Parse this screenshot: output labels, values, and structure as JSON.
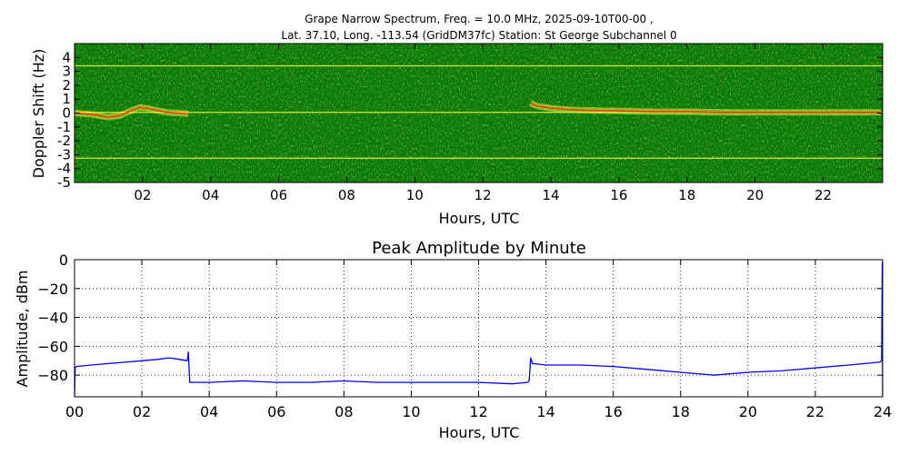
{
  "chart_data": [
    {
      "type": "heatmap",
      "title_line1": "Grape Narrow Spectrum, Freq. = 10.0 MHz, 2025-09-10T00-00 ,",
      "title_line2": "Lat.  37.10, Long. -113.54 (GridDM37fc) Station: St George Subchannel 0",
      "xlabel": "Hours, UTC",
      "ylabel": "Doppler Shift (Hz)",
      "xlim": [
        0,
        23.75
      ],
      "ylim": [
        -5,
        5
      ],
      "xticks": [
        2,
        4,
        6,
        8,
        10,
        12,
        14,
        16,
        18,
        20,
        22
      ],
      "xtick_labels": [
        "02",
        "04",
        "06",
        "08",
        "10",
        "12",
        "14",
        "16",
        "18",
        "20",
        "22"
      ],
      "yticks": [
        4,
        3,
        2,
        1,
        0,
        -1,
        -2,
        -3,
        -4,
        -5
      ],
      "ytick_labels": [
        "4",
        "3",
        "2",
        "1",
        "0",
        "-1",
        "-2",
        "-3",
        "-4",
        "-5"
      ],
      "colors": {
        "background": "#0a7a08",
        "signal": "#f4f03a",
        "peak": "#ff2a1a"
      },
      "spectral_lines_hz": [
        3.4,
        0.05,
        -3.25
      ],
      "doppler_trace": {
        "x": [
          0,
          0.5,
          1,
          1.3,
          1.6,
          1.9,
          2.1,
          2.4,
          2.7,
          3.0,
          3.35,
          13.4,
          13.6,
          14,
          14.5,
          15,
          16,
          17,
          18,
          19,
          20,
          21,
          22,
          23,
          23.7
        ],
        "y": [
          0,
          -0.1,
          -0.3,
          -0.2,
          0.1,
          0.4,
          0.35,
          0.2,
          0.05,
          0,
          -0.05,
          0.7,
          0.5,
          0.35,
          0.25,
          0.2,
          0.15,
          0.1,
          0.1,
          0.05,
          0.05,
          0.05,
          0.05,
          0.05,
          0.05
        ]
      }
    },
    {
      "type": "line",
      "title": "Peak Amplitude by Minute",
      "xlabel": "Hours, UTC",
      "ylabel": "Amplitude, dBm",
      "xlim": [
        0,
        24
      ],
      "ylim": [
        -95,
        0
      ],
      "xticks": [
        0,
        2,
        4,
        6,
        8,
        10,
        12,
        14,
        16,
        18,
        20,
        22,
        24
      ],
      "xtick_labels": [
        "00",
        "02",
        "04",
        "06",
        "08",
        "10",
        "12",
        "14",
        "16",
        "18",
        "20",
        "22",
        "24"
      ],
      "yticks": [
        0,
        -20,
        -40,
        -60,
        -80
      ],
      "ytick_labels": [
        "0",
        "−20",
        "−40",
        "−60",
        "−80"
      ],
      "grid": true,
      "line_color": "#0000ff",
      "series": [
        {
          "x": [
            0,
            0.02,
            0.05,
            0.5,
            1.0,
            1.5,
            2.0,
            2.5,
            2.8,
            3.1,
            3.35,
            3.38,
            3.42,
            4,
            5,
            6,
            7,
            8,
            9,
            10,
            11,
            12,
            13,
            13.45,
            13.5,
            13.55,
            13.6,
            14,
            15,
            16,
            17,
            18,
            19,
            20,
            21,
            22,
            23,
            23.9,
            23.97,
            23.99,
            24
          ],
          "y": [
            -95,
            -75,
            -74,
            -73,
            -72,
            -71,
            -70,
            -69,
            -68,
            -69,
            -70,
            -64,
            -85,
            -85,
            -84,
            -85,
            -85,
            -84,
            -85,
            -85,
            -85,
            -85,
            -86,
            -85,
            -84,
            -68,
            -72,
            -73,
            -73,
            -74,
            -76,
            -78,
            -80,
            -78,
            -77,
            -75,
            -73,
            -71,
            -70,
            -2,
            -95
          ]
        }
      ]
    }
  ]
}
